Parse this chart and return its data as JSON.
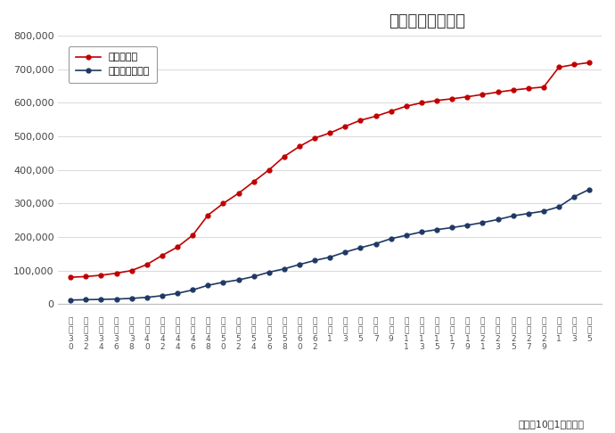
{
  "title": "人口と世帯の推移",
  "subtitle": "（各年10月1日現在）",
  "legend_pop": "人口［人］",
  "legend_hh": "世帯数［世帯］",
  "pop_color": "#c00000",
  "hh_color": "#1f3864",
  "ylim": [
    0,
    800000
  ],
  "yticks": [
    0,
    100000,
    200000,
    300000,
    400000,
    500000,
    600000,
    700000,
    800000
  ],
  "x_labels_line1": [
    "昭",
    "昭",
    "昭",
    "昭",
    "昭",
    "昭",
    "昭",
    "昭",
    "昭",
    "昭",
    "昭",
    "昭",
    "昭",
    "昭",
    "昭",
    "昭",
    "昭",
    "平",
    "平",
    "平",
    "平",
    "平",
    "平",
    "平",
    "平",
    "平",
    "平",
    "平",
    "平",
    "平",
    "平",
    "平",
    "令",
    "令",
    "令"
  ],
  "x_labels_line2": [
    "和",
    "和",
    "和",
    "和",
    "和",
    "和",
    "和",
    "和",
    "和",
    "和",
    "和",
    "和",
    "和",
    "和",
    "和",
    "和",
    "和",
    "成",
    "成",
    "成",
    "成",
    "成",
    "成",
    "成",
    "成",
    "成",
    "成",
    "成",
    "成",
    "成",
    "成",
    "成",
    "和",
    "和",
    "和"
  ],
  "x_labels_line3": [
    "3",
    "3",
    "3",
    "3",
    "3",
    "4",
    "4",
    "4",
    "4",
    "4",
    "5",
    "5",
    "5",
    "5",
    "5",
    "6",
    "6",
    "1",
    "3",
    "5",
    "7",
    "9",
    "1",
    "1",
    "1",
    "1",
    "1",
    "2",
    "2",
    "2",
    "2",
    "2",
    "1",
    "3",
    "5"
  ],
  "x_labels_line4": [
    "0",
    "2",
    "4",
    "6",
    "8",
    "0",
    "2",
    "4",
    "6",
    "8",
    "0",
    "2",
    "4",
    "6",
    "8",
    "0",
    "2",
    "",
    "",
    "",
    "",
    "",
    "1",
    "3",
    "5",
    "7",
    "9",
    "1",
    "3",
    "5",
    "7",
    "9",
    "",
    "",
    ""
  ],
  "population": [
    80000,
    82000,
    86000,
    92000,
    100000,
    118000,
    145000,
    170000,
    205000,
    265000,
    300000,
    330000,
    365000,
    400000,
    440000,
    470000,
    495000,
    510000,
    530000,
    548000,
    560000,
    575000,
    590000,
    600000,
    607000,
    612000,
    618000,
    625000,
    632000,
    638000,
    643000,
    647000,
    706000,
    714000,
    720000
  ],
  "households": [
    12000,
    13000,
    14000,
    15000,
    17000,
    20000,
    25000,
    32000,
    42000,
    56000,
    65000,
    72000,
    82000,
    95000,
    105000,
    118000,
    130000,
    140000,
    155000,
    168000,
    180000,
    195000,
    205000,
    215000,
    222000,
    228000,
    235000,
    243000,
    252000,
    263000,
    270000,
    277000,
    290000,
    320000,
    342000
  ],
  "background_color": "#ffffff",
  "grid_color": "#d3d3d3"
}
